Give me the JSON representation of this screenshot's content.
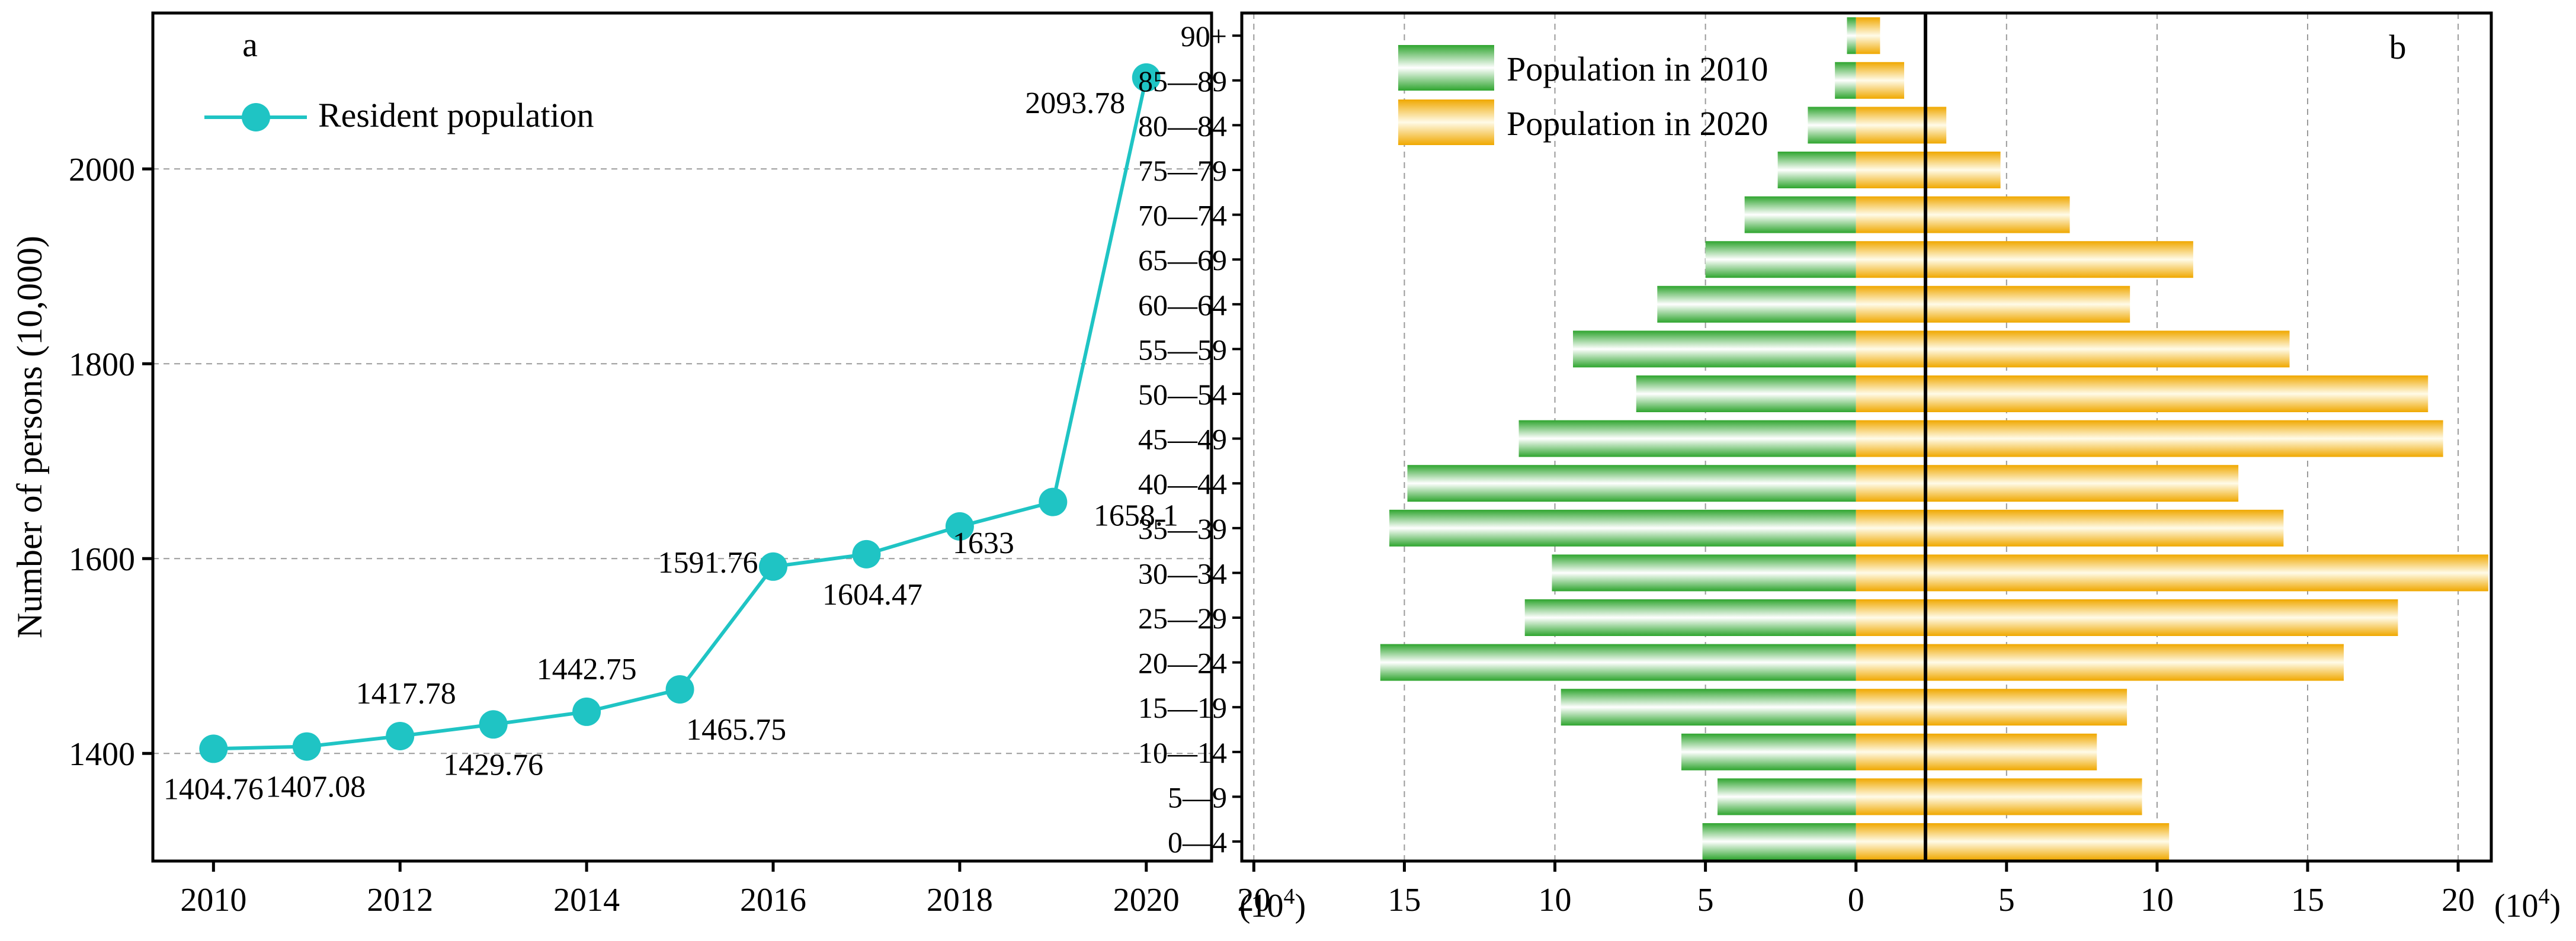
{
  "chart_data": [
    {
      "panel_label": "a",
      "type": "line",
      "x": [
        2010,
        2011,
        2012,
        2013,
        2014,
        2015,
        2016,
        2017,
        2018,
        2019,
        2020
      ],
      "series": [
        {
          "name": "Resident population",
          "values": [
            1404.76,
            1407.08,
            1417.78,
            1429.76,
            1442.75,
            1465.75,
            1591.76,
            1604.47,
            1633,
            1658.1,
            2093.78
          ],
          "labels": [
            "1404.76",
            "1407.08",
            "1417.78",
            "1429.76",
            "1442.75",
            "1465.75",
            "1591.76",
            "1604.47",
            "1633",
            "1658.1",
            "2093.78"
          ],
          "color": "#1fc4c4"
        }
      ],
      "xlabel": "",
      "ylabel": "Number of persons (10,000)",
      "xlim": [
        2009.35,
        2020.7
      ],
      "ylim": [
        1289.5,
        2160
      ],
      "xticks": [
        "2010",
        "2012",
        "2014",
        "2016",
        "2018",
        "2020"
      ],
      "yticks": [
        "1400",
        "1600",
        "1800",
        "2000"
      ],
      "grid": "horizontal dashed",
      "legend": "top-left"
    },
    {
      "panel_label": "b",
      "type": "bar",
      "orientation": "horizontal population pyramid",
      "categories": [
        "0—4",
        "5—9",
        "10—14",
        "15—19",
        "20—24",
        "25—29",
        "30—34",
        "35—39",
        "40—44",
        "45—49",
        "50—54",
        "55—59",
        "60—64",
        "65—69",
        "70—74",
        "75—79",
        "80—84",
        "85—89",
        "90+"
      ],
      "series": [
        {
          "name": "Population in 2010",
          "side": "left",
          "values": [
            5.1,
            4.6,
            5.8,
            9.8,
            15.8,
            11.0,
            10.1,
            15.5,
            14.9,
            11.2,
            7.3,
            9.4,
            6.6,
            5.0,
            3.7,
            2.6,
            1.6,
            0.7,
            0.3
          ],
          "color": "#3db83d"
        },
        {
          "name": "Population in 2020",
          "side": "right",
          "values": [
            10.4,
            9.5,
            8.0,
            9.0,
            16.2,
            18.0,
            21.0,
            14.2,
            12.7,
            19.5,
            19.0,
            14.4,
            9.1,
            11.2,
            7.1,
            4.8,
            3.0,
            1.6,
            0.8
          ],
          "color": "#f2b21e"
        }
      ],
      "xlabel": "",
      "ylabel": "",
      "xlim": [
        -20.4,
        21.1
      ],
      "xticks": [
        "20",
        "15",
        "10",
        "5",
        "0",
        "5",
        "10",
        "15",
        "20"
      ],
      "x_unit_left": "(10",
      "x_unit_right": "(10",
      "x_unit_exp": "4",
      "x_unit_close": ")",
      "grid": "vertical dashed",
      "legend": "top-left"
    }
  ]
}
